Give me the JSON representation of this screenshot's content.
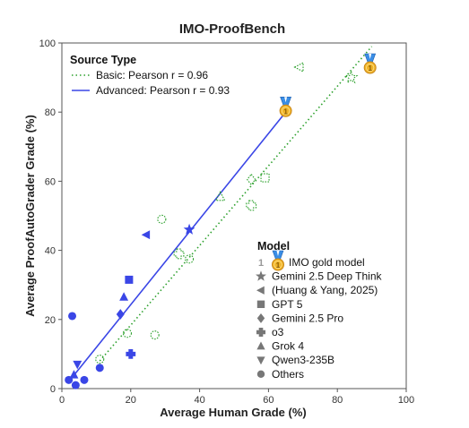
{
  "chart_data": {
    "type": "scatter",
    "title": "IMO-ProofBench",
    "xlabel": "Average Human Grade (%)",
    "ylabel": "Average ProofAutoGrader Grade (%)",
    "xlim": [
      0,
      100
    ],
    "ylim": [
      0,
      100
    ],
    "xticks": [
      "0",
      "20",
      "40",
      "60",
      "80",
      "100"
    ],
    "yticks": [
      "0",
      "20",
      "40",
      "60",
      "80",
      "100"
    ],
    "grid": false,
    "series": [
      {
        "name": "Basic",
        "style": "hollow-dotted",
        "color": "#2ca02c",
        "fit_label": "Basic: Pearson r = 0.96",
        "fit_line": [
          [
            11,
            8
          ],
          [
            90,
            99
          ]
        ],
        "points": [
          {
            "marker": "circle",
            "x": 11,
            "y": 8.5
          },
          {
            "marker": "circle",
            "x": 19,
            "y": 16
          },
          {
            "marker": "circle",
            "x": 27,
            "y": 15.5
          },
          {
            "marker": "circle",
            "x": 29,
            "y": 49
          },
          {
            "marker": "circle",
            "x": 37,
            "y": 37.5
          },
          {
            "marker": "plus",
            "x": 34,
            "y": 39
          },
          {
            "marker": "plus",
            "x": 55,
            "y": 53
          },
          {
            "marker": "diamond",
            "x": 55,
            "y": 60.5
          },
          {
            "marker": "square",
            "x": 59,
            "y": 61
          },
          {
            "marker": "triangle-up",
            "x": 46,
            "y": 55.5
          },
          {
            "marker": "triangle-left",
            "x": 69,
            "y": 93
          },
          {
            "marker": "star",
            "x": 84,
            "y": 90
          },
          {
            "marker": "gold",
            "x": 89.5,
            "y": 93
          }
        ]
      },
      {
        "name": "Advanced",
        "style": "filled-solid",
        "color": "#3a46e6",
        "fit_label": "Advanced: Pearson r = 0.93",
        "fit_line": [
          [
            2,
            2
          ],
          [
            65,
            80
          ]
        ],
        "points": [
          {
            "marker": "circle",
            "x": 3,
            "y": 21
          },
          {
            "marker": "circle",
            "x": 2,
            "y": 2.5
          },
          {
            "marker": "circle",
            "x": 4,
            "y": 1
          },
          {
            "marker": "circle",
            "x": 6.5,
            "y": 2.5
          },
          {
            "marker": "circle",
            "x": 11,
            "y": 6
          },
          {
            "marker": "triangle-down",
            "x": 4.5,
            "y": 7
          },
          {
            "marker": "triangle-up",
            "x": 3.5,
            "y": 4
          },
          {
            "marker": "triangle-up",
            "x": 18,
            "y": 26.5
          },
          {
            "marker": "square",
            "x": 19.5,
            "y": 31.5
          },
          {
            "marker": "diamond",
            "x": 17,
            "y": 21.5
          },
          {
            "marker": "plus",
            "x": 20,
            "y": 10
          },
          {
            "marker": "triangle-left",
            "x": 24.5,
            "y": 44.5
          },
          {
            "marker": "star",
            "x": 37,
            "y": 46
          },
          {
            "marker": "gold",
            "x": 65,
            "y": 80.5
          }
        ]
      }
    ],
    "legend_source": {
      "title": "Source Type",
      "position": "top-left",
      "entries": [
        "Basic: Pearson r = 0.96",
        "Advanced: Pearson r = 0.93"
      ]
    },
    "legend_model": {
      "title": "Model",
      "position": "bottom-right",
      "entries": [
        {
          "marker": "gold",
          "label": "IMO gold model"
        },
        {
          "marker": "star",
          "label": "Gemini 2.5 Deep Think"
        },
        {
          "marker": "triangle-left",
          "label": "(Huang & Yang, 2025)"
        },
        {
          "marker": "square",
          "label": "GPT 5"
        },
        {
          "marker": "diamond",
          "label": "Gemini 2.5 Pro"
        },
        {
          "marker": "plus",
          "label": "o3"
        },
        {
          "marker": "triangle-up",
          "label": "Grok 4"
        },
        {
          "marker": "triangle-down",
          "label": "Qwen3-235B"
        },
        {
          "marker": "circle",
          "label": "Others"
        }
      ]
    }
  }
}
